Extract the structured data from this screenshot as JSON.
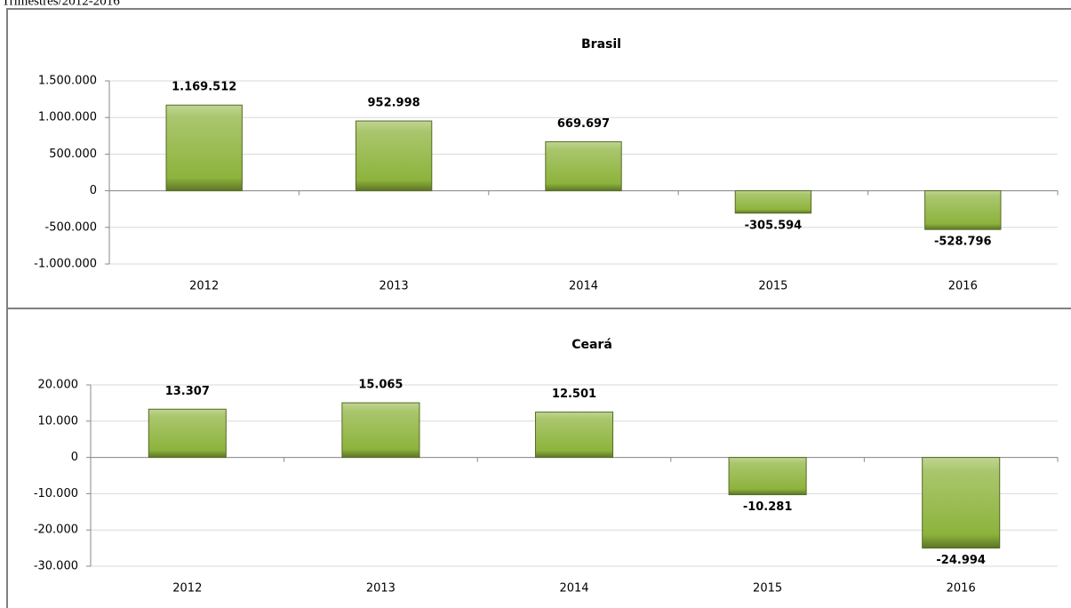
{
  "caption": "Trimestres/2012-2016",
  "chart_data": [
    {
      "type": "bar",
      "title": "Brasil",
      "categories": [
        "2012",
        "2013",
        "2014",
        "2015",
        "2016"
      ],
      "values": [
        1169512,
        952998,
        669697,
        -305594,
        -528796
      ],
      "value_labels": [
        "1.169.512",
        "952.998",
        "669.697",
        "-305.594",
        "-528.796"
      ],
      "color": "#8db33c",
      "label_color": "#000000",
      "negative_label_color": "#ff0000",
      "ylim": [
        -1000000,
        1500000
      ],
      "yticks": [
        {
          "value": -1000000,
          "label": "-1.000.000"
        },
        {
          "value": -500000,
          "label": "-500.000"
        },
        0,
        {
          "value": 500000,
          "label": "500.000"
        },
        {
          "value": 1000000,
          "label": "1.000.000"
        },
        {
          "value": 1500000,
          "label": "1.500.000"
        }
      ],
      "grid": true
    },
    {
      "type": "bar",
      "title": "Ceará",
      "categories": [
        "2012",
        "2013",
        "2014",
        "2015",
        "2016"
      ],
      "values": [
        13307,
        15065,
        12501,
        -10281,
        -24994
      ],
      "value_labels": [
        "13.307",
        "15.065",
        "12.501",
        "-10.281",
        "-24.994"
      ],
      "color": "#8db33c",
      "label_color": "#000000",
      "negative_label_color": "#ff0000",
      "ylim": [
        -30000,
        20000
      ],
      "yticks": [
        {
          "value": -30000,
          "label": "-30.000"
        },
        {
          "value": -20000,
          "label": "-20.000"
        },
        {
          "value": -10000,
          "label": "-10.000"
        },
        0,
        {
          "value": 10000,
          "label": "10.000"
        },
        {
          "value": 20000,
          "label": "20.000"
        }
      ],
      "grid": true
    }
  ]
}
